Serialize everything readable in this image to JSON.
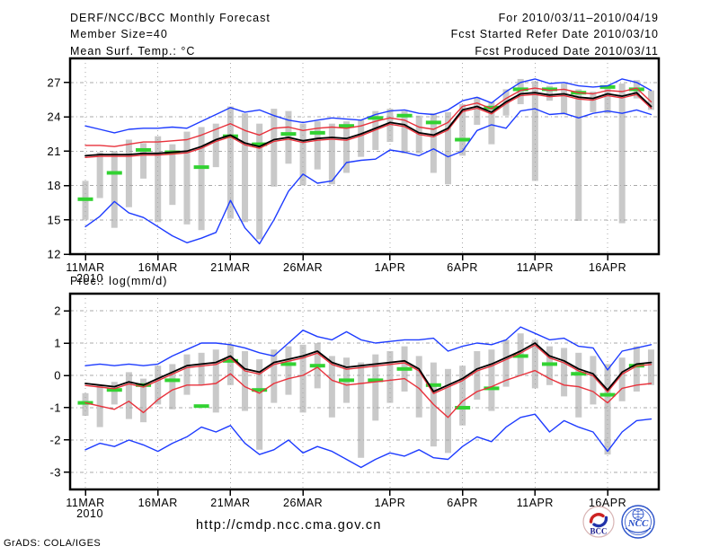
{
  "header": {
    "title": "DERF/NCC/BCC Monthly Forecast",
    "member_size": "Member Size=40",
    "for_range": "For 2010/03/11–2010/04/19",
    "refer_date": "Fcst Started Refer Date 2010/03/10",
    "produced_date": "Fcst Produced Date 2010/03/11"
  },
  "footer": {
    "url": "http://cmdp.ncc.cma.gov.cn",
    "credit": "GrADS: COLA/IGES",
    "logos": [
      {
        "name": "bcc-logo",
        "label": "BCC"
      },
      {
        "name": "ncc-logo",
        "label": "NCC"
      }
    ]
  },
  "colors": {
    "envelope_blue": "#1e3cff",
    "quartile_red": "#e8323c",
    "mean_black": "#000000",
    "obs_green": "#32d232",
    "spread_bar_gray": "#c9c9c9",
    "grid_gray": "#a8a8a8",
    "frame_black": "#000000"
  },
  "chart_data": [
    {
      "type": "line",
      "title": "Mean Surf. Temp.: °C",
      "x_axis": {
        "start": "11MAR2010",
        "end": "19APR2010",
        "n_days": 40
      },
      "xticks": [
        {
          "day": 0,
          "label": "11MAR",
          "sub": "2010"
        },
        {
          "day": 5,
          "label": "16MAR"
        },
        {
          "day": 10,
          "label": "21MAR"
        },
        {
          "day": 15,
          "label": "26MAR"
        },
        {
          "day": 21,
          "label": "1APR"
        },
        {
          "day": 26,
          "label": "6APR"
        },
        {
          "day": 31,
          "label": "11APR"
        },
        {
          "day": 36,
          "label": "16APR"
        }
      ],
      "ylim": [
        12,
        29.1
      ],
      "yticks": [
        12,
        15,
        18,
        21,
        24,
        27
      ],
      "grid": true,
      "legend": "none",
      "series": [
        {
          "name": "ensemble-max",
          "color": "envelope_blue",
          "width": 1.4,
          "values": [
            23.2,
            22.9,
            22.6,
            22.9,
            23.0,
            23.0,
            23.1,
            23.0,
            23.6,
            24.2,
            24.8,
            24.4,
            24.6,
            24.1,
            23.7,
            23.5,
            23.7,
            23.9,
            23.8,
            23.7,
            24.2,
            24.5,
            24.6,
            24.3,
            24.2,
            24.6,
            25.4,
            25.7,
            25.2,
            26.2,
            27.0,
            27.3,
            26.9,
            27.0,
            26.7,
            26.6,
            26.7,
            27.3,
            27.0,
            26.3
          ]
        },
        {
          "name": "upper-quartile",
          "color": "quartile_red",
          "width": 1.4,
          "values": [
            21.5,
            21.5,
            21.4,
            21.6,
            21.8,
            21.8,
            21.9,
            22.0,
            22.4,
            22.9,
            23.4,
            22.8,
            22.4,
            23.0,
            23.1,
            22.8,
            23.0,
            23.1,
            23.0,
            23.2,
            23.6,
            23.9,
            23.7,
            23.1,
            22.9,
            23.5,
            24.9,
            25.2,
            24.7,
            25.6,
            26.3,
            26.5,
            26.3,
            26.4,
            26.1,
            26.0,
            26.3,
            26.2,
            26.5,
            25.3
          ]
        },
        {
          "name": "lower-quartile",
          "color": "quartile_red",
          "width": 1.4,
          "values": [
            20.45,
            20.55,
            20.55,
            20.55,
            20.65,
            20.65,
            20.75,
            20.85,
            21.25,
            21.85,
            22.25,
            21.55,
            21.25,
            21.85,
            22.05,
            21.75,
            21.95,
            22.05,
            21.95,
            22.35,
            22.85,
            23.35,
            23.15,
            22.45,
            22.25,
            22.85,
            24.45,
            24.75,
            24.25,
            25.15,
            25.85,
            25.95,
            25.75,
            25.85,
            25.55,
            25.45,
            25.85,
            25.65,
            25.95,
            24.75
          ]
        },
        {
          "name": "ensemble-mean",
          "color": "mean_black",
          "width": 1.8,
          "values": [
            20.6,
            20.7,
            20.7,
            20.7,
            20.8,
            20.8,
            20.9,
            21.0,
            21.4,
            22.0,
            22.4,
            21.7,
            21.4,
            22.0,
            22.2,
            21.9,
            22.1,
            22.2,
            22.1,
            22.5,
            23.0,
            23.5,
            23.3,
            22.6,
            22.4,
            23.0,
            24.6,
            24.9,
            24.4,
            25.3,
            26.0,
            26.1,
            25.9,
            26.0,
            25.7,
            25.6,
            26.0,
            25.8,
            26.1,
            24.9
          ]
        },
        {
          "name": "ensemble-min",
          "color": "envelope_blue",
          "width": 1.4,
          "values": [
            14.4,
            15.3,
            16.6,
            15.6,
            15.2,
            14.4,
            13.6,
            13.0,
            13.4,
            13.9,
            16.7,
            14.3,
            12.9,
            15.0,
            17.5,
            19.0,
            18.2,
            18.4,
            20.0,
            20.2,
            20.3,
            21.1,
            20.9,
            20.6,
            21.2,
            20.5,
            21.0,
            22.8,
            23.3,
            23.0,
            24.5,
            24.7,
            24.2,
            24.3,
            23.9,
            24.3,
            24.5,
            24.3,
            24.6,
            24.2
          ]
        }
      ],
      "obs_dashes": {
        "name": "observation-dashes",
        "color": "obs_green",
        "points": [
          [
            0,
            16.8
          ],
          [
            2,
            19.1
          ],
          [
            4,
            21.1
          ],
          [
            6,
            20.9
          ],
          [
            8,
            19.6
          ],
          [
            10,
            22.3
          ],
          [
            12,
            21.6
          ],
          [
            14,
            22.5
          ],
          [
            16,
            22.6
          ],
          [
            18,
            23.2
          ],
          [
            20,
            23.9
          ],
          [
            22,
            24.1
          ],
          [
            24,
            23.5
          ],
          [
            26,
            22.0
          ],
          [
            28,
            24.8
          ],
          [
            30,
            26.4
          ],
          [
            32,
            26.4
          ],
          [
            34,
            26.1
          ],
          [
            36,
            26.6
          ],
          [
            38,
            26.4
          ]
        ]
      },
      "spread_bars": [
        [
          15.0,
          18.4
        ],
        [
          16.9,
          20.9
        ],
        [
          14.3,
          21.0
        ],
        [
          16.1,
          22.0
        ],
        [
          18.6,
          21.7
        ],
        [
          14.8,
          22.3
        ],
        [
          16.3,
          21.6
        ],
        [
          14.6,
          22.7
        ],
        [
          14.1,
          23.1
        ],
        [
          19.6,
          23.4
        ],
        [
          15.1,
          24.9
        ],
        [
          14.8,
          24.3
        ],
        [
          13.3,
          23.4
        ],
        [
          17.9,
          24.7
        ],
        [
          19.9,
          24.5
        ],
        [
          18.0,
          23.4
        ],
        [
          19.4,
          23.6
        ],
        [
          18.1,
          23.4
        ],
        [
          19.1,
          23.6
        ],
        [
          20.5,
          23.7
        ],
        [
          21.1,
          24.5
        ],
        [
          21.8,
          24.7
        ],
        [
          20.8,
          24.5
        ],
        [
          20.8,
          24.1
        ],
        [
          19.1,
          24.3
        ],
        [
          18.1,
          24.4
        ],
        [
          20.6,
          25.1
        ],
        [
          23.3,
          25.7
        ],
        [
          21.6,
          25.3
        ],
        [
          24.1,
          26.4
        ],
        [
          25.1,
          27.3
        ],
        [
          18.4,
          27.1
        ],
        [
          25.4,
          26.7
        ],
        [
          24.2,
          26.9
        ],
        [
          14.9,
          26.4
        ],
        [
          24.4,
          26.2
        ],
        [
          24.3,
          26.6
        ],
        [
          14.7,
          26.9
        ],
        [
          25.6,
          27.2
        ],
        [
          24.6,
          26.3
        ]
      ]
    },
    {
      "type": "line",
      "title": "Prec.: log(mm/d)",
      "x_axis": {
        "start": "11MAR2010",
        "end": "19APR2010",
        "n_days": 40
      },
      "xticks": [
        {
          "day": 0,
          "label": "11MAR",
          "sub": "2010"
        },
        {
          "day": 5,
          "label": "16MAR"
        },
        {
          "day": 10,
          "label": "21MAR"
        },
        {
          "day": 15,
          "label": "26MAR"
        },
        {
          "day": 21,
          "label": "1APR"
        },
        {
          "day": 26,
          "label": "6APR"
        },
        {
          "day": 31,
          "label": "11APR"
        },
        {
          "day": 36,
          "label": "16APR"
        }
      ],
      "ylim": [
        -3.53,
        2.53
      ],
      "yticks": [
        2,
        1,
        0,
        -1,
        -2,
        -3
      ],
      "grid": true,
      "legend": "none",
      "series": [
        {
          "name": "ensemble-max",
          "color": "envelope_blue",
          "width": 1.4,
          "values": [
            0.3,
            0.35,
            0.3,
            0.35,
            0.3,
            0.35,
            0.6,
            0.8,
            1.0,
            1.0,
            0.95,
            0.85,
            0.7,
            0.6,
            1.0,
            1.4,
            1.2,
            1.1,
            1.35,
            1.1,
            1.0,
            1.05,
            1.1,
            1.1,
            1.15,
            0.75,
            0.9,
            1.0,
            0.95,
            1.1,
            1.5,
            1.3,
            1.1,
            1.15,
            0.9,
            0.85,
            0.17,
            0.75,
            0.85,
            0.95
          ]
        },
        {
          "name": "upper-quartile",
          "color": "quartile_red",
          "width": 1.4,
          "values": [
            -0.31,
            -0.36,
            -0.41,
            -0.26,
            -0.36,
            -0.16,
            0.04,
            0.24,
            0.29,
            0.34,
            0.54,
            0.14,
            0.04,
            0.34,
            0.44,
            0.54,
            0.69,
            0.34,
            0.19,
            0.24,
            0.29,
            0.34,
            0.39,
            0.14,
            -0.56,
            -0.36,
            -0.16,
            0.14,
            0.29,
            0.49,
            0.69,
            0.94,
            0.54,
            0.39,
            0.14,
            -0.01,
            -0.51,
            0.04,
            0.29,
            0.34
          ]
        },
        {
          "name": "lower-quartile",
          "color": "quartile_red",
          "width": 1.4,
          "values": [
            -0.85,
            -0.95,
            -1.05,
            -0.8,
            -1.15,
            -0.75,
            -0.45,
            -0.3,
            -0.3,
            -0.25,
            0.05,
            -0.35,
            -0.55,
            -0.25,
            -0.1,
            0.0,
            0.25,
            -0.15,
            -0.3,
            -0.25,
            -0.2,
            -0.15,
            -0.1,
            -0.4,
            -0.9,
            -1.3,
            -0.8,
            -0.5,
            -0.35,
            -0.15,
            0.0,
            0.15,
            -0.1,
            -0.3,
            -0.35,
            -0.5,
            -0.85,
            -0.4,
            -0.3,
            -0.25
          ]
        },
        {
          "name": "ensemble-mean",
          "color": "mean_black",
          "width": 1.8,
          "values": [
            -0.25,
            -0.3,
            -0.35,
            -0.2,
            -0.3,
            -0.1,
            0.1,
            0.3,
            0.35,
            0.4,
            0.6,
            0.2,
            0.1,
            0.4,
            0.5,
            0.6,
            0.75,
            0.4,
            0.25,
            0.3,
            0.35,
            0.4,
            0.45,
            0.2,
            -0.5,
            -0.3,
            -0.1,
            0.2,
            0.35,
            0.55,
            0.75,
            1.0,
            0.6,
            0.45,
            0.2,
            0.05,
            -0.45,
            0.1,
            0.35,
            0.4
          ]
        },
        {
          "name": "ensemble-min",
          "color": "envelope_blue",
          "width": 1.4,
          "values": [
            -2.3,
            -2.1,
            -2.2,
            -2.0,
            -2.15,
            -2.35,
            -2.1,
            -1.9,
            -1.6,
            -1.75,
            -1.55,
            -2.1,
            -2.45,
            -2.3,
            -2.0,
            -2.4,
            -2.2,
            -2.35,
            -2.6,
            -2.85,
            -2.6,
            -2.4,
            -2.5,
            -2.3,
            -2.55,
            -2.6,
            -2.2,
            -1.9,
            -2.05,
            -1.6,
            -1.3,
            -1.2,
            -1.75,
            -1.4,
            -1.6,
            -1.75,
            -2.35,
            -1.75,
            -1.4,
            -1.35
          ]
        }
      ],
      "obs_dashes": {
        "name": "observation-dashes",
        "color": "obs_green",
        "points": [
          [
            0,
            -0.85
          ],
          [
            2,
            -0.45
          ],
          [
            4,
            -0.3
          ],
          [
            6,
            -0.15
          ],
          [
            8,
            -0.95
          ],
          [
            10,
            0.45
          ],
          [
            12,
            -0.45
          ],
          [
            14,
            0.35
          ],
          [
            16,
            0.3
          ],
          [
            18,
            -0.15
          ],
          [
            20,
            -0.15
          ],
          [
            22,
            0.2
          ],
          [
            24,
            -0.3
          ],
          [
            26,
            -1.0
          ],
          [
            28,
            -0.4
          ],
          [
            30,
            0.6
          ],
          [
            32,
            0.35
          ],
          [
            34,
            0.05
          ],
          [
            36,
            -0.6
          ],
          [
            38,
            0.3
          ]
        ]
      },
      "spread_bars": [
        [
          -1.25,
          -0.55
        ],
        [
          -1.6,
          -0.3
        ],
        [
          -0.9,
          -0.2
        ],
        [
          -1.35,
          0.1
        ],
        [
          -1.45,
          -0.1
        ],
        [
          -0.9,
          0.3
        ],
        [
          -1.05,
          0.35
        ],
        [
          -0.6,
          0.65
        ],
        [
          -0.3,
          0.7
        ],
        [
          -1.15,
          0.8
        ],
        [
          -0.3,
          0.95
        ],
        [
          -1.1,
          0.75
        ],
        [
          -2.3,
          0.5
        ],
        [
          -0.85,
          0.8
        ],
        [
          -0.6,
          0.9
        ],
        [
          -1.15,
          0.95
        ],
        [
          -0.4,
          1.0
        ],
        [
          -1.3,
          0.6
        ],
        [
          -0.85,
          0.55
        ],
        [
          -2.55,
          0.4
        ],
        [
          -1.4,
          0.65
        ],
        [
          -0.85,
          0.75
        ],
        [
          -0.5,
          0.9
        ],
        [
          -1.3,
          0.6
        ],
        [
          -2.2,
          0.4
        ],
        [
          -2.4,
          0.2
        ],
        [
          -1.55,
          0.3
        ],
        [
          -0.75,
          0.75
        ],
        [
          -1.1,
          0.8
        ],
        [
          -0.35,
          1.1
        ],
        [
          0.0,
          1.3
        ],
        [
          -0.4,
          1.1
        ],
        [
          -0.3,
          0.9
        ],
        [
          -0.65,
          0.85
        ],
        [
          -1.3,
          0.7
        ],
        [
          -0.9,
          0.6
        ],
        [
          -2.45,
          0.35
        ],
        [
          -0.8,
          0.55
        ],
        [
          -0.5,
          0.9
        ],
        [
          -0.3,
          0.8
        ]
      ]
    }
  ]
}
